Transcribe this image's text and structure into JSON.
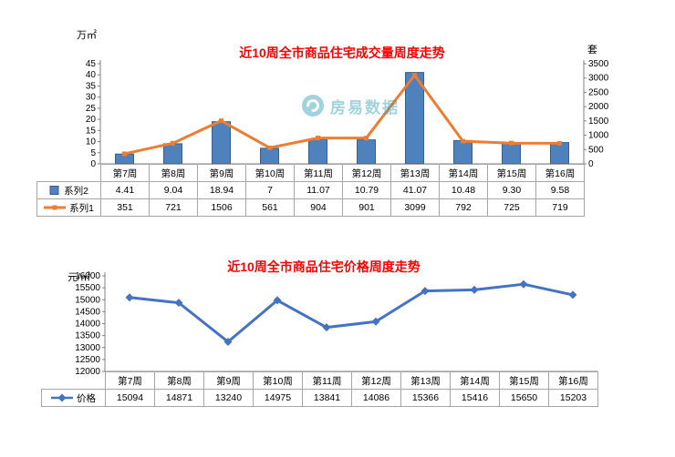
{
  "watermark": {
    "text": "房易数据"
  },
  "chart_data": [
    {
      "type": "bar",
      "combo": "bar+line",
      "title": "近10周全市商品住宅成交量周度走势",
      "left_axis_unit": "万㎡",
      "right_axis_unit": "套",
      "categories": [
        "第7周",
        "第8周",
        "第9周",
        "第10周",
        "第11周",
        "第12周",
        "第13周",
        "第14周",
        "第15周",
        "第16周"
      ],
      "series": [
        {
          "name": "系列2",
          "kind": "bar",
          "axis": "left",
          "key": "square",
          "values": [
            4.41,
            9.04,
            18.94,
            7,
            11.07,
            10.79,
            41.07,
            10.48,
            9.3,
            9.58
          ],
          "display": [
            "4.41",
            "9.04",
            "18.94",
            "7",
            "11.07",
            "10.79",
            "41.07",
            "10.48",
            "9.30",
            "9.58"
          ],
          "color": "#4f81bd",
          "border": "#36618e"
        },
        {
          "name": "系列1",
          "kind": "line",
          "axis": "right",
          "key": "line",
          "values": [
            351,
            721,
            1506,
            561,
            904,
            901,
            3099,
            792,
            725,
            719
          ],
          "display": [
            "351",
            "721",
            "1506",
            "561",
            "904",
            "901",
            "3099",
            "792",
            "725",
            "719"
          ],
          "color": "#ed7d31"
        }
      ],
      "left_axis": {
        "min": 0,
        "max": 45,
        "step": 5
      },
      "right_axis": {
        "min": 0,
        "max": 3500,
        "step": 500
      },
      "legend_position": "table-left",
      "grid": false
    },
    {
      "type": "line",
      "title": "近10周全市商品住宅价格周度走势",
      "left_axis_unit": "元/㎡",
      "categories": [
        "第7周",
        "第8周",
        "第9周",
        "第10周",
        "第11周",
        "第12周",
        "第13周",
        "第14周",
        "第15周",
        "第16周"
      ],
      "series": [
        {
          "name": "价格",
          "kind": "line",
          "axis": "left",
          "key": "line-diamond",
          "values": [
            15094,
            14871,
            13240,
            14975,
            13841,
            14086,
            15366,
            15416,
            15650,
            15203
          ],
          "display": [
            "15094",
            "14871",
            "13240",
            "14975",
            "13841",
            "14086",
            "15366",
            "15416",
            "15650",
            "15203"
          ],
          "color": "#4472c4"
        }
      ],
      "left_axis": {
        "min": 12000,
        "max": 16000,
        "step": 500
      },
      "legend_position": "table-left",
      "grid": false
    }
  ]
}
